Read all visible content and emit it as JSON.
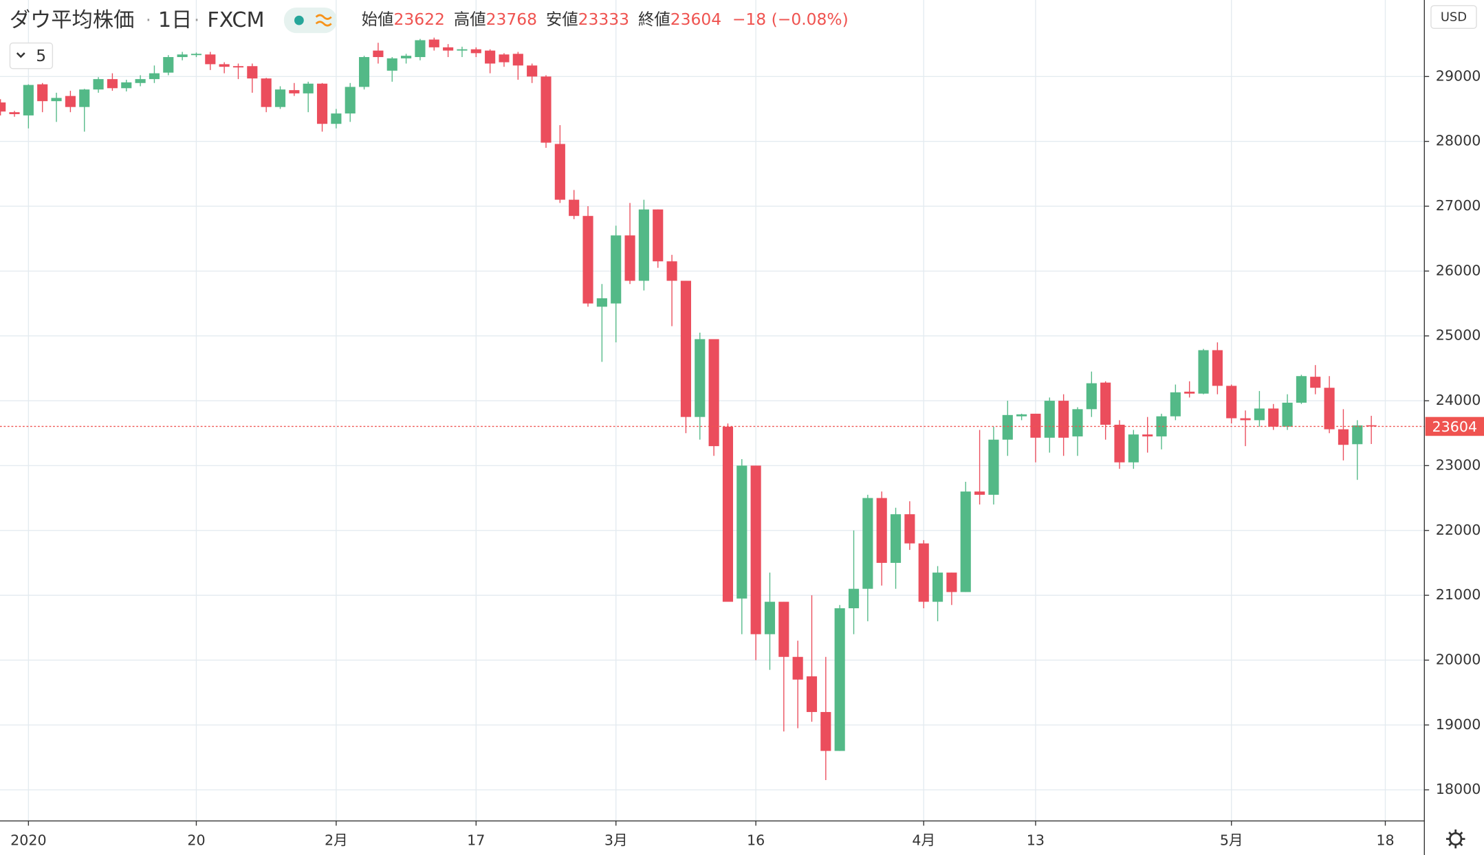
{
  "chart_data": {
    "type": "candlestick",
    "title": "ダウ平均株価",
    "interval": "1日",
    "source": "FXCM",
    "currency": "USD",
    "length": 5,
    "ohlc_labels": [
      "始値",
      "高値",
      "安値",
      "終値"
    ],
    "change": "−18 (−0.08%)",
    "categories": [
      null,
      null,
      "2020",
      null,
      null,
      null,
      null,
      null,
      null,
      null,
      null,
      null,
      null,
      null,
      "20",
      null,
      null,
      null,
      null,
      null,
      null,
      null,
      null,
      null,
      "2月",
      null,
      null,
      null,
      null,
      null,
      null,
      null,
      null,
      null,
      "17",
      null,
      null,
      null,
      null,
      null,
      null,
      null,
      null,
      null,
      "3月",
      null,
      null,
      null,
      null,
      null,
      null,
      null,
      null,
      null,
      "16",
      null,
      null,
      null,
      null,
      null,
      null,
      null,
      null,
      null,
      null,
      null,
      "4月",
      null,
      null,
      null,
      null,
      null,
      null,
      null,
      "13",
      null,
      null,
      null,
      null,
      null,
      null,
      null,
      null,
      null,
      null,
      null,
      null,
      null,
      "5月",
      null,
      null,
      null,
      null,
      null,
      null,
      null,
      null,
      null,
      null,
      "18"
    ],
    "open": [
      28600,
      28450,
      28400,
      28880,
      28620,
      28700,
      28530,
      28800,
      28960,
      28820,
      28900,
      28960,
      29060,
      29300,
      29330,
      29340,
      29190,
      29160,
      29160,
      28970,
      28530,
      28790,
      28740,
      28890,
      28270,
      28430,
      28840,
      29400,
      29090,
      29280,
      29300,
      29570,
      29450,
      29400,
      29420,
      29400,
      29340,
      29350,
      29170,
      29000,
      27960,
      27100,
      26850,
      25450,
      25500,
      26550,
      25850,
      26950,
      26150,
      25850,
      23750,
      24950,
      23600,
      20950,
      23000,
      20400,
      20900,
      20050,
      19750,
      19200,
      18600,
      20800,
      21100,
      22500,
      21500,
      22250,
      21800,
      20900,
      21350,
      21050,
      22600,
      22550,
      23400,
      23760,
      23800,
      23430,
      24000,
      23450,
      23870,
      24280,
      23630,
      23050,
      23480,
      23450,
      23760,
      24140,
      24110,
      24780,
      24230,
      23730,
      23700,
      23880,
      23600,
      23970,
      24370,
      24200,
      23560,
      23330,
      23622,
      null
    ],
    "high": [
      28650,
      28470,
      28880,
      28900,
      28750,
      28780,
      28810,
      28990,
      29050,
      28950,
      29020,
      29170,
      29330,
      29380,
      29370,
      29380,
      29220,
      29200,
      29200,
      28980,
      28850,
      28900,
      28920,
      28900,
      28500,
      28900,
      29320,
      29520,
      29300,
      29350,
      29580,
      29600,
      29500,
      29460,
      29450,
      29420,
      29360,
      29380,
      29200,
      29020,
      28250,
      27250,
      27000,
      25800,
      26700,
      27050,
      27100,
      26950,
      26250,
      25850,
      25050,
      24950,
      23650,
      23100,
      23000,
      21350,
      20900,
      20300,
      21000,
      20050,
      20850,
      22000,
      22550,
      22600,
      22350,
      22450,
      21850,
      21450,
      21350,
      22750,
      23550,
      23600,
      24000,
      23800,
      23800,
      24050,
      24100,
      23900,
      24450,
      24300,
      23700,
      23550,
      23750,
      23800,
      24250,
      24300,
      24800,
      24900,
      24250,
      23850,
      24150,
      23950,
      24100,
      24400,
      24550,
      24380,
      23870,
      23700,
      23768,
      null
    ],
    "low": [
      28400,
      28380,
      28200,
      28450,
      28300,
      28450,
      28150,
      28750,
      28780,
      28770,
      28850,
      28900,
      29020,
      29250,
      29300,
      29100,
      29050,
      28960,
      28750,
      28450,
      28500,
      28700,
      28450,
      28150,
      28200,
      28300,
      28800,
      29200,
      28920,
      29200,
      29250,
      29400,
      29300,
      29300,
      29300,
      29050,
      29150,
      28950,
      28900,
      27900,
      27050,
      26800,
      25450,
      24600,
      24900,
      25800,
      25700,
      26050,
      25150,
      23500,
      23400,
      23150,
      20900,
      20400,
      20000,
      19850,
      18900,
      18950,
      19050,
      18150,
      18600,
      20400,
      20600,
      21150,
      21100,
      21700,
      20800,
      20600,
      20850,
      21050,
      22400,
      22400,
      23150,
      23700,
      23050,
      23200,
      23150,
      23150,
      23750,
      23400,
      22950,
      22950,
      23200,
      23250,
      23700,
      24050,
      24100,
      24100,
      23650,
      23300,
      23600,
      23550,
      23550,
      23950,
      24100,
      23500,
      23080,
      22780,
      23333,
      null
    ],
    "close": [
      28460,
      28420,
      28870,
      28620,
      28670,
      28530,
      28800,
      28960,
      28820,
      28910,
      28960,
      29050,
      29300,
      29340,
      29350,
      29190,
      29150,
      29140,
      28970,
      28530,
      28800,
      28740,
      28890,
      28270,
      28430,
      28840,
      29300,
      29300,
      29280,
      29320,
      29560,
      29450,
      29400,
      29420,
      29360,
      29200,
      29220,
      29170,
      29000,
      27980,
      27100,
      26850,
      25500,
      25580,
      26550,
      25850,
      26950,
      26150,
      25850,
      23750,
      24950,
      23300,
      20900,
      23000,
      20400,
      20900,
      20050,
      19700,
      19200,
      18600,
      20800,
      21100,
      22500,
      21500,
      22250,
      21800,
      20900,
      21350,
      21050,
      22600,
      22550,
      23400,
      23780,
      23790,
      23430,
      24000,
      23430,
      23870,
      24270,
      23630,
      23050,
      23480,
      23450,
      23760,
      24130,
      24110,
      24780,
      24230,
      23730,
      23700,
      23880,
      23600,
      23970,
      24380,
      24200,
      23560,
      23320,
      23620,
      23604,
      null
    ],
    "up_color": "#53b987",
    "down_color": "#eb4d5c",
    "price_line_color": "#ef5350",
    "ylim": [
      17520,
      30180
    ],
    "yticks": [
      18000,
      19000,
      20000,
      21000,
      22000,
      23000,
      24000,
      25000,
      26000,
      27000,
      28000,
      29000
    ],
    "grid": true
  }
}
